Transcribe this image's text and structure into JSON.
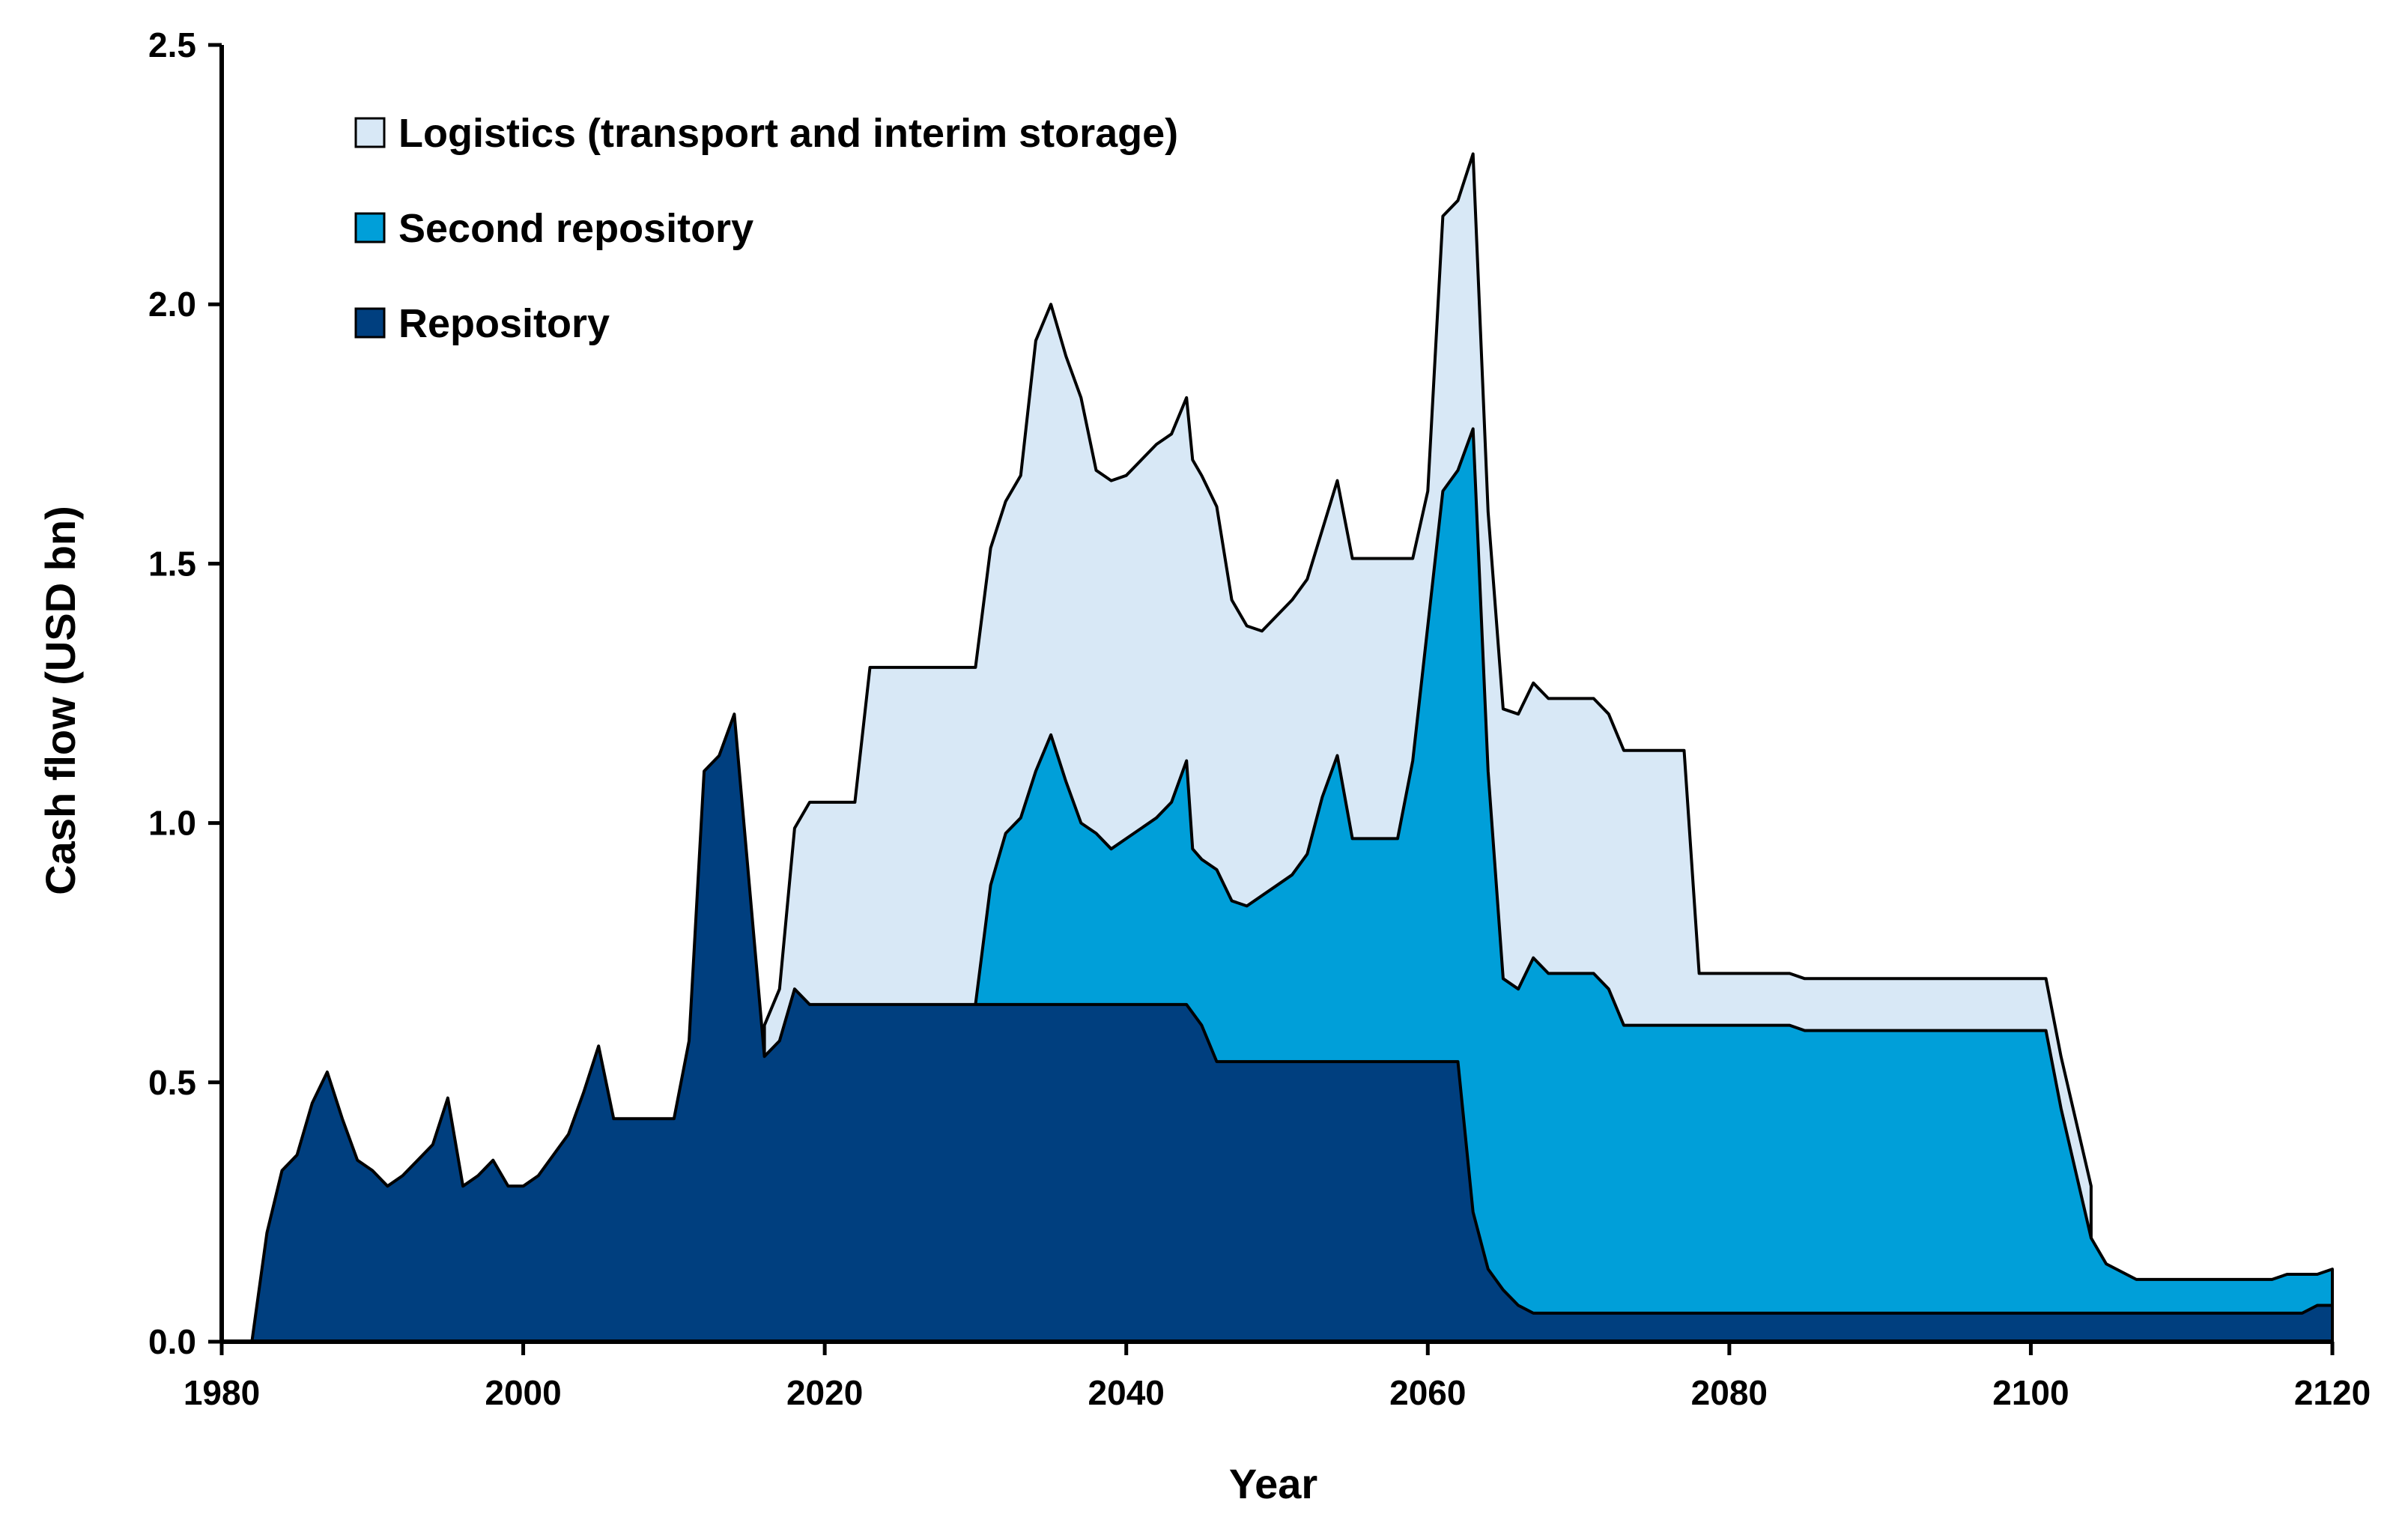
{
  "chart_data": {
    "type": "area",
    "stacked": true,
    "title": "",
    "xlabel": "Year",
    "ylabel": "Cash flow (USD bn)",
    "xlim": [
      1980,
      2120
    ],
    "ylim": [
      0,
      2.5
    ],
    "xticks": [
      "1980",
      "2000",
      "2020",
      "2040",
      "2060",
      "2080",
      "2100",
      "2120"
    ],
    "yticks": [
      "0.0",
      "0.5",
      "1.0",
      "1.5",
      "2.0",
      "2.5"
    ],
    "grid": false,
    "legend_position": "top-left",
    "colors": {
      "repository": "#003f7f",
      "second_repository": "#009fd9",
      "logistics": "#d8e8f6",
      "outline": "#000000"
    },
    "series": [
      {
        "name": "Logistics (transport and interim storage)",
        "key": "logistics",
        "total_points": [
          [
            2016,
            0.61
          ],
          [
            2017,
            0.68
          ],
          [
            2018,
            0.99
          ],
          [
            2019,
            1.04
          ],
          [
            2022,
            1.04
          ],
          [
            2023,
            1.3
          ],
          [
            2030,
            1.3
          ],
          [
            2031,
            1.53
          ],
          [
            2032,
            1.62
          ],
          [
            2033,
            1.67
          ],
          [
            2034,
            1.93
          ],
          [
            2035,
            2.0
          ],
          [
            2036,
            1.9
          ],
          [
            2037,
            1.82
          ],
          [
            2038,
            1.68
          ],
          [
            2039,
            1.66
          ],
          [
            2040,
            1.67
          ],
          [
            2042,
            1.73
          ],
          [
            2043,
            1.75
          ],
          [
            2044,
            1.82
          ],
          [
            2044.4,
            1.7
          ],
          [
            2045,
            1.67
          ],
          [
            2046,
            1.61
          ],
          [
            2047,
            1.43
          ],
          [
            2048,
            1.38
          ],
          [
            2049,
            1.37
          ],
          [
            2051,
            1.43
          ],
          [
            2052,
            1.47
          ],
          [
            2054,
            1.66
          ],
          [
            2055,
            1.51
          ],
          [
            2057,
            1.51
          ],
          [
            2059,
            1.51
          ],
          [
            2060,
            1.64
          ],
          [
            2061,
            2.17
          ],
          [
            2062,
            2.2
          ],
          [
            2063,
            2.29
          ],
          [
            2064,
            1.6
          ],
          [
            2065,
            1.22
          ],
          [
            2066,
            1.21
          ],
          [
            2067,
            1.27
          ],
          [
            2068,
            1.24
          ],
          [
            2071,
            1.24
          ],
          [
            2072,
            1.21
          ],
          [
            2073,
            1.14
          ],
          [
            2077,
            1.14
          ],
          [
            2078,
            0.71
          ],
          [
            2084,
            0.71
          ],
          [
            2085,
            0.7
          ],
          [
            2101,
            0.7
          ],
          [
            2102,
            0.55
          ],
          [
            2104,
            0.3
          ]
        ]
      },
      {
        "name": "Second repository",
        "key": "second_repository",
        "total_points": [
          [
            2030,
            0.65
          ],
          [
            2031,
            0.88
          ],
          [
            2032,
            0.98
          ],
          [
            2033,
            1.01
          ],
          [
            2034,
            1.1
          ],
          [
            2035,
            1.17
          ],
          [
            2036,
            1.08
          ],
          [
            2037,
            1.0
          ],
          [
            2038,
            0.98
          ],
          [
            2039,
            0.95
          ],
          [
            2040,
            0.97
          ],
          [
            2042,
            1.01
          ],
          [
            2043,
            1.04
          ],
          [
            2044,
            1.12
          ],
          [
            2044.4,
            0.95
          ],
          [
            2045,
            0.93
          ],
          [
            2046,
            0.91
          ],
          [
            2047,
            0.85
          ],
          [
            2048,
            0.84
          ],
          [
            2050,
            0.88
          ],
          [
            2051,
            0.9
          ],
          [
            2052,
            0.94
          ],
          [
            2053,
            1.05
          ],
          [
            2054,
            1.13
          ],
          [
            2055,
            0.97
          ],
          [
            2058,
            0.97
          ],
          [
            2059,
            1.12
          ],
          [
            2061,
            1.64
          ],
          [
            2062,
            1.68
          ],
          [
            2063,
            1.76
          ],
          [
            2064,
            1.1
          ],
          [
            2065,
            0.7
          ],
          [
            2066,
            0.68
          ],
          [
            2067,
            0.74
          ],
          [
            2068,
            0.71
          ],
          [
            2071,
            0.71
          ],
          [
            2072,
            0.68
          ],
          [
            2073,
            0.61
          ],
          [
            2084,
            0.61
          ],
          [
            2085,
            0.6
          ],
          [
            2101,
            0.6
          ],
          [
            2102,
            0.45
          ],
          [
            2104,
            0.2
          ],
          [
            2105,
            0.15
          ],
          [
            2107,
            0.12
          ],
          [
            2116,
            0.12
          ],
          [
            2117,
            0.13
          ],
          [
            2119,
            0.13
          ],
          [
            2120,
            0.14
          ]
        ]
      },
      {
        "name": "Repository",
        "key": "repository",
        "points": [
          [
            1982,
            0.0
          ],
          [
            1983,
            0.21
          ],
          [
            1984,
            0.33
          ],
          [
            1985,
            0.36
          ],
          [
            1986,
            0.46
          ],
          [
            1987,
            0.52
          ],
          [
            1988,
            0.43
          ],
          [
            1989,
            0.35
          ],
          [
            1990,
            0.33
          ],
          [
            1991,
            0.3
          ],
          [
            1992,
            0.32
          ],
          [
            1993,
            0.35
          ],
          [
            1994,
            0.38
          ],
          [
            1995,
            0.47
          ],
          [
            1996,
            0.3
          ],
          [
            1997,
            0.32
          ],
          [
            1998,
            0.35
          ],
          [
            1999,
            0.3
          ],
          [
            2000,
            0.3
          ],
          [
            2001,
            0.32
          ],
          [
            2003,
            0.4
          ],
          [
            2004,
            0.48
          ],
          [
            2005,
            0.57
          ],
          [
            2006,
            0.43
          ],
          [
            2010,
            0.43
          ],
          [
            2011,
            0.58
          ],
          [
            2012,
            1.1
          ],
          [
            2013,
            1.13
          ],
          [
            2014,
            1.21
          ],
          [
            2016,
            0.55
          ],
          [
            2017,
            0.58
          ],
          [
            2018,
            0.68
          ],
          [
            2019,
            0.65
          ],
          [
            2044,
            0.65
          ],
          [
            2045,
            0.61
          ],
          [
            2046,
            0.54
          ],
          [
            2062,
            0.54
          ],
          [
            2063,
            0.25
          ],
          [
            2064,
            0.14
          ],
          [
            2065,
            0.1
          ],
          [
            2066,
            0.07
          ],
          [
            2067,
            0.055
          ],
          [
            2118,
            0.055
          ],
          [
            2119,
            0.07
          ],
          [
            2120,
            0.07
          ]
        ]
      }
    ],
    "legend": [
      {
        "label": "Logistics (transport and interim storage)",
        "key": "logistics"
      },
      {
        "label": "Second repository",
        "key": "second_repository"
      },
      {
        "label": "Repository",
        "key": "repository"
      }
    ]
  }
}
